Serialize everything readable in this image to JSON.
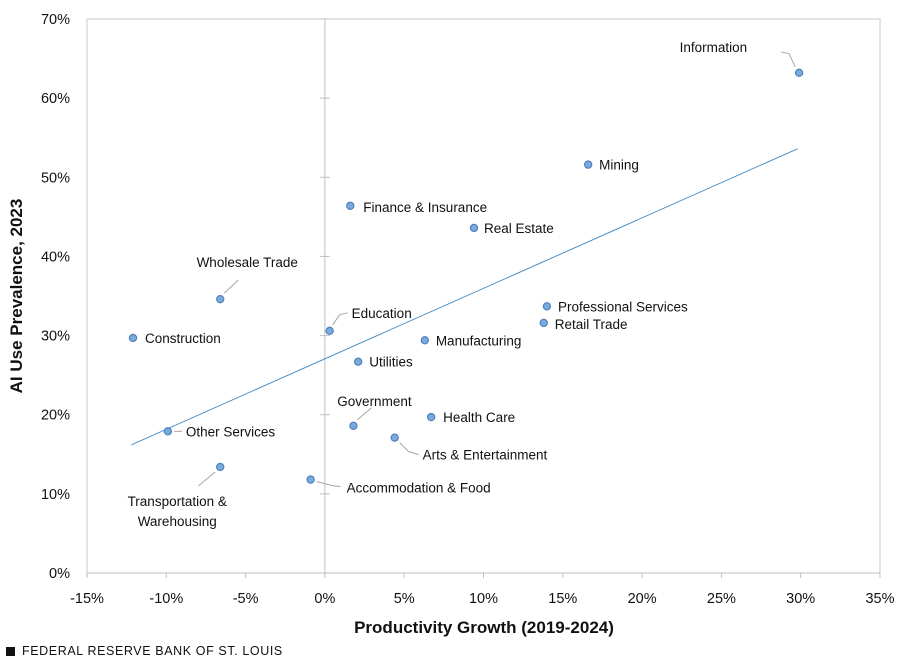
{
  "chart_data": {
    "type": "scatter",
    "xlabel": "Productivity Growth (2019-2024)",
    "ylabel": "AI Use Prevalence, 2023",
    "xlim": [
      -15,
      35
    ],
    "ylim": [
      0,
      70
    ],
    "x_ticks": [
      "-15%",
      "-10%",
      "-5%",
      "0%",
      "5%",
      "10%",
      "15%",
      "20%",
      "25%",
      "30%",
      "35%"
    ],
    "y_ticks": [
      "0%",
      "10%",
      "20%",
      "30%",
      "40%",
      "50%",
      "60%",
      "70%"
    ],
    "trendline": {
      "x_start": -12.2,
      "x_end": 29.8,
      "y_start": 16.2,
      "y_end": 53.6
    },
    "points": [
      {
        "name": "Information",
        "x": 29.9,
        "y": 63.2
      },
      {
        "name": "Mining",
        "x": 16.6,
        "y": 51.6
      },
      {
        "name": "Finance & Insurance",
        "x": 1.6,
        "y": 46.4
      },
      {
        "name": "Real Estate",
        "x": 9.4,
        "y": 43.6
      },
      {
        "name": "Wholesale Trade",
        "x": -6.6,
        "y": 34.6
      },
      {
        "name": "Professional Services",
        "x": 14.0,
        "y": 33.7
      },
      {
        "name": "Retail Trade",
        "x": 13.8,
        "y": 31.6
      },
      {
        "name": "Education",
        "x": 0.3,
        "y": 30.6
      },
      {
        "name": "Construction",
        "x": -12.1,
        "y": 29.7
      },
      {
        "name": "Manufacturing",
        "x": 6.3,
        "y": 29.4
      },
      {
        "name": "Utilities",
        "x": 2.1,
        "y": 26.7
      },
      {
        "name": "Health Care",
        "x": 6.7,
        "y": 19.7
      },
      {
        "name": "Government",
        "x": 1.8,
        "y": 18.6
      },
      {
        "name": "Other Services",
        "x": -9.9,
        "y": 17.9
      },
      {
        "name": "Arts & Entertainment",
        "x": 4.4,
        "y": 17.1
      },
      {
        "name": "Transportation & Warehousing",
        "x": -6.6,
        "y": 13.4
      },
      {
        "name": "Accommodation  & Food",
        "x": -0.9,
        "y": 11.8
      }
    ]
  },
  "footer": {
    "source": "FEDERAL RESERVE BANK OF ST. LOUIS"
  },
  "colors": {
    "point_fill": "#7aaadc",
    "point_stroke": "#4f81bd",
    "trendline": "#4a90c8",
    "frame": "#c8c8c8",
    "leader": "#a6a6a6"
  }
}
